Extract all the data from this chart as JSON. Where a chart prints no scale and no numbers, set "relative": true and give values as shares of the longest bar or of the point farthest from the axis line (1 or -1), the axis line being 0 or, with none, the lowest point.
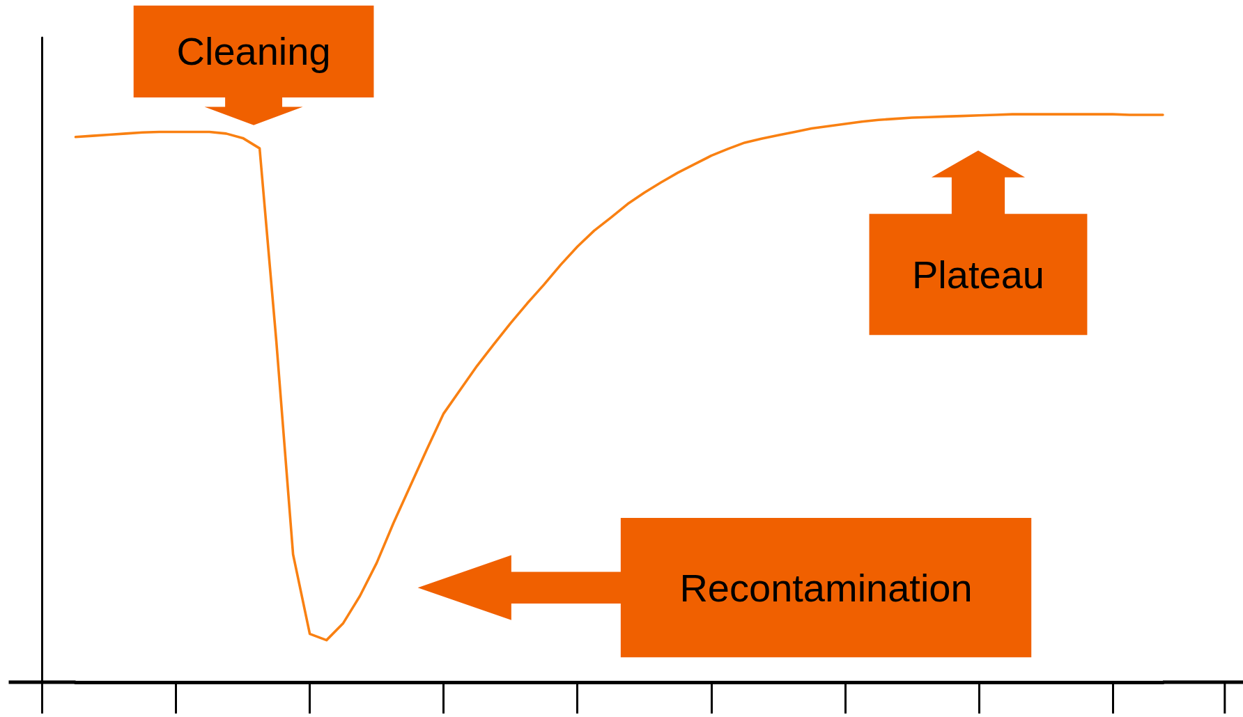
{
  "chart_data": {
    "type": "line",
    "relative": true,
    "marker": "none",
    "line_style": "solid",
    "categories": [
      null,
      null,
      null,
      null,
      null,
      null,
      null,
      null,
      null,
      null,
      null,
      null,
      null,
      null,
      null,
      null,
      null,
      null,
      null,
      null,
      null,
      null,
      null,
      null,
      null,
      null,
      null,
      null,
      null,
      null,
      null,
      null,
      null,
      null,
      null,
      null,
      null,
      null,
      null,
      null,
      null,
      null,
      null,
      null,
      null,
      null,
      null,
      null,
      null,
      null,
      null,
      null,
      null,
      null,
      null,
      null,
      null,
      null,
      null,
      null,
      null,
      null,
      null,
      null,
      null,
      null
    ],
    "series": [
      {
        "color": "#f98012",
        "values": [
          0.96,
          0.962,
          0.964,
          0.966,
          0.968,
          0.969,
          0.969,
          0.969,
          0.969,
          0.966,
          0.958,
          0.94,
          0.6,
          0.225,
          0.085,
          0.074,
          0.104,
          0.152,
          0.21,
          0.28,
          0.345,
          0.41,
          0.473,
          0.515,
          0.557,
          0.595,
          0.632,
          0.667,
          0.7,
          0.735,
          0.767,
          0.795,
          0.818,
          0.842,
          0.862,
          0.88,
          0.897,
          0.912,
          0.927,
          0.939,
          0.95,
          0.957,
          0.963,
          0.969,
          0.975,
          0.979,
          0.983,
          0.987,
          0.99,
          0.992,
          0.994,
          0.995,
          0.996,
          0.997,
          0.998,
          0.999,
          1.0,
          1.0,
          1.0,
          1.0,
          1.0,
          1.0,
          1.0,
          0.999,
          0.999,
          0.999
        ]
      }
    ],
    "annotations": [
      "Cleaning",
      "Plateau",
      "Recontamination"
    ]
  }
}
